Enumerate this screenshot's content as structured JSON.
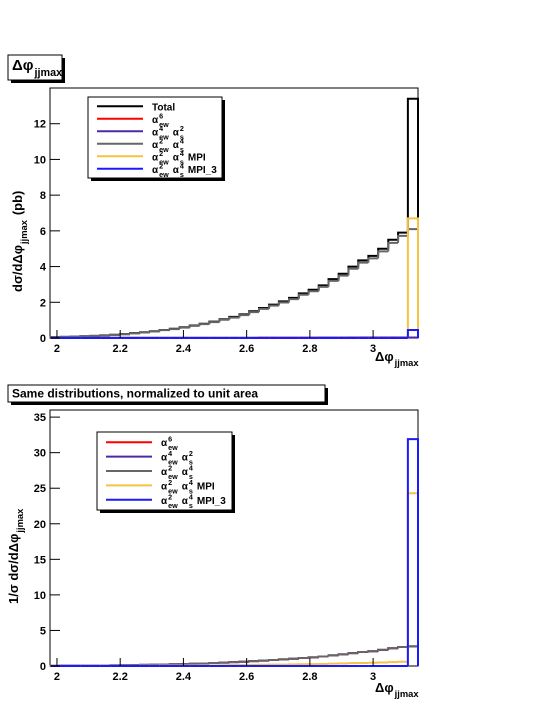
{
  "chart_data": [
    {
      "type": "histogram",
      "title": [
        {
          "text": "Δφ",
          "sub": "jjmax"
        }
      ],
      "ylabel": [
        {
          "text": "dσ/dΔφ",
          "sub": "jjmax"
        },
        {
          "text": "(pb)"
        }
      ],
      "xlabel": [
        {
          "text": "Δφ",
          "sub": "jjmax"
        }
      ],
      "bins": [
        1.98,
        2.011,
        2.043,
        2.074,
        2.106,
        2.137,
        2.168,
        2.2,
        2.231,
        2.263,
        2.294,
        2.325,
        2.357,
        2.388,
        2.42,
        2.451,
        2.482,
        2.514,
        2.545,
        2.577,
        2.608,
        2.639,
        2.671,
        2.702,
        2.734,
        2.765,
        2.796,
        2.828,
        2.859,
        2.891,
        2.922,
        2.953,
        2.985,
        3.016,
        3.048,
        3.079,
        3.11,
        3.142
      ],
      "xlim": [
        1.978,
        3.142
      ],
      "xticks": [
        2,
        2.2,
        2.4,
        2.6,
        2.8,
        3
      ],
      "ylim": [
        0,
        14
      ],
      "yticks": [
        0,
        2,
        4,
        6,
        8,
        10,
        12
      ],
      "series": [
        {
          "name": [
            {
              "text": "Total"
            }
          ],
          "color": "#000000",
          "values": [
            0.05,
            0.06,
            0.08,
            0.1,
            0.12,
            0.15,
            0.18,
            0.22,
            0.27,
            0.32,
            0.38,
            0.45,
            0.52,
            0.6,
            0.7,
            0.8,
            0.92,
            1.05,
            1.18,
            1.32,
            1.5,
            1.68,
            1.87,
            2.05,
            2.25,
            2.5,
            2.7,
            2.95,
            3.3,
            3.6,
            4.0,
            4.35,
            4.6,
            5.0,
            5.5,
            5.9,
            13.4
          ]
        },
        {
          "name": [
            {
              "text": "α",
              "sub": "ew",
              "sup": "6"
            }
          ],
          "color": "#ff0000",
          "values": [
            0.01,
            0.01,
            0.01,
            0.01,
            0.01,
            0.01,
            0.01,
            0.01,
            0.01,
            0.01,
            0.01,
            0.01,
            0.01,
            0.01,
            0.01,
            0.01,
            0.01,
            0.01,
            0.01,
            0.01,
            0.01,
            0.02,
            0.02,
            0.02,
            0.02,
            0.02,
            0.02,
            0.02,
            0.02,
            0.02,
            0.03,
            0.03,
            0.03,
            0.03,
            0.03,
            0.03,
            0.03
          ]
        },
        {
          "name": [
            {
              "text": "α",
              "sub": "ew",
              "sup": "4"
            },
            {
              "text": "α",
              "sub": "s",
              "sup": "2"
            }
          ],
          "color": "#4b2aa8",
          "values": [
            0.01,
            0.01,
            0.01,
            0.01,
            0.01,
            0.01,
            0.01,
            0.01,
            0.01,
            0.01,
            0.01,
            0.01,
            0.01,
            0.01,
            0.01,
            0.01,
            0.01,
            0.01,
            0.01,
            0.01,
            0.01,
            0.01,
            0.01,
            0.01,
            0.01,
            0.01,
            0.01,
            0.02,
            0.02,
            0.02,
            0.02,
            0.02,
            0.02,
            0.02,
            0.02,
            0.02,
            0.02
          ]
        },
        {
          "name": [
            {
              "text": "α",
              "sub": "ew",
              "sup": "2"
            },
            {
              "text": "α",
              "sub": "s",
              "sup": "4"
            }
          ],
          "color": "#666666",
          "values": [
            0.05,
            0.06,
            0.08,
            0.1,
            0.12,
            0.15,
            0.17,
            0.21,
            0.26,
            0.31,
            0.37,
            0.44,
            0.5,
            0.58,
            0.68,
            0.78,
            0.89,
            1.02,
            1.14,
            1.28,
            1.45,
            1.63,
            1.81,
            1.99,
            2.18,
            2.42,
            2.62,
            2.86,
            3.2,
            3.49,
            3.88,
            4.22,
            4.46,
            4.85,
            5.33,
            5.72,
            6.1
          ]
        },
        {
          "name": [
            {
              "text": "α",
              "sub": "ew",
              "sup": "2"
            },
            {
              "text": "α",
              "sub": "s",
              "sup": "4"
            },
            {
              "text": "MPI"
            }
          ],
          "color": "#f5c242",
          "values": [
            0,
            0,
            0,
            0,
            0,
            0,
            0,
            0,
            0,
            0,
            0,
            0,
            0,
            0,
            0,
            0,
            0,
            0,
            0,
            0,
            0,
            0,
            0,
            0,
            0,
            0,
            0,
            0,
            0,
            0,
            0,
            0,
            0,
            0,
            0,
            0,
            6.7
          ]
        },
        {
          "name": [
            {
              "text": "α",
              "sub": "ew",
              "sup": "2"
            },
            {
              "text": "α",
              "sub": "s",
              "sup": "4"
            },
            {
              "text": "MPI_3"
            }
          ],
          "color": "#1a1aff",
          "values": [
            0,
            0,
            0,
            0,
            0,
            0,
            0,
            0,
            0,
            0,
            0,
            0,
            0,
            0,
            0,
            0,
            0,
            0,
            0,
            0,
            0,
            0,
            0,
            0,
            0,
            0,
            0,
            0,
            0,
            0,
            0,
            0,
            0,
            0,
            0,
            0,
            0.45
          ]
        }
      ]
    },
    {
      "type": "histogram",
      "title": [
        {
          "text": "Same distributions, normalized to unit area"
        }
      ],
      "ylabel": [
        {
          "text": "1/σ dσ/dΔφ",
          "sub": "jjmax"
        }
      ],
      "xlabel": [
        {
          "text": "Δφ",
          "sub": "jjmax"
        }
      ],
      "bins": [
        1.98,
        2.011,
        2.043,
        2.074,
        2.106,
        2.137,
        2.168,
        2.2,
        2.231,
        2.263,
        2.294,
        2.325,
        2.357,
        2.388,
        2.42,
        2.451,
        2.482,
        2.514,
        2.545,
        2.577,
        2.608,
        2.639,
        2.671,
        2.702,
        2.734,
        2.765,
        2.796,
        2.828,
        2.859,
        2.891,
        2.922,
        2.953,
        2.985,
        3.016,
        3.048,
        3.079,
        3.11,
        3.142
      ],
      "xlim": [
        1.978,
        3.142
      ],
      "xticks": [
        2,
        2.2,
        2.4,
        2.6,
        2.8,
        3
      ],
      "ylim": [
        0,
        36
      ],
      "yticks": [
        0,
        5,
        10,
        15,
        20,
        25,
        30,
        35
      ],
      "series": [
        {
          "name": [
            {
              "text": "α",
              "sub": "ew",
              "sup": "6"
            }
          ],
          "color": "#ff0000",
          "values": [
            0.02,
            0.03,
            0.04,
            0.05,
            0.06,
            0.07,
            0.08,
            0.1,
            0.12,
            0.15,
            0.17,
            0.2,
            0.24,
            0.27,
            0.32,
            0.36,
            0.42,
            0.48,
            0.54,
            0.6,
            0.68,
            0.76,
            0.85,
            0.93,
            1.02,
            1.13,
            1.22,
            1.34,
            1.5,
            1.63,
            1.81,
            1.97,
            2.08,
            2.26,
            2.49,
            2.67,
            2.76
          ]
        },
        {
          "name": [
            {
              "text": "α",
              "sub": "ew",
              "sup": "4"
            },
            {
              "text": "α",
              "sub": "s",
              "sup": "2"
            }
          ],
          "color": "#4b2aa8",
          "values": [
            0.02,
            0.03,
            0.04,
            0.05,
            0.06,
            0.07,
            0.08,
            0.1,
            0.12,
            0.15,
            0.17,
            0.2,
            0.24,
            0.27,
            0.32,
            0.36,
            0.42,
            0.48,
            0.54,
            0.6,
            0.68,
            0.76,
            0.85,
            0.93,
            1.02,
            1.13,
            1.22,
            1.34,
            1.5,
            1.63,
            1.81,
            1.97,
            2.08,
            2.26,
            2.49,
            2.67,
            2.76
          ]
        },
        {
          "name": [
            {
              "text": "α",
              "sub": "ew",
              "sup": "2"
            },
            {
              "text": "α",
              "sub": "s",
              "sup": "4"
            }
          ],
          "color": "#666666",
          "values": [
            0.02,
            0.03,
            0.04,
            0.05,
            0.06,
            0.07,
            0.08,
            0.1,
            0.12,
            0.15,
            0.17,
            0.2,
            0.24,
            0.27,
            0.32,
            0.36,
            0.42,
            0.48,
            0.54,
            0.6,
            0.68,
            0.76,
            0.85,
            0.93,
            1.02,
            1.13,
            1.22,
            1.34,
            1.5,
            1.63,
            1.81,
            1.97,
            2.08,
            2.26,
            2.49,
            2.67,
            2.76
          ]
        },
        {
          "name": [
            {
              "text": "α",
              "sub": "ew",
              "sup": "2"
            },
            {
              "text": "α",
              "sub": "s",
              "sup": "4"
            },
            {
              "text": "MPI"
            }
          ],
          "color": "#f5c242",
          "values": [
            0.004,
            0.006,
            0.008,
            0.01,
            0.012,
            0.015,
            0.018,
            0.022,
            0.026,
            0.033,
            0.037,
            0.044,
            0.053,
            0.06,
            0.07,
            0.08,
            0.09,
            0.1,
            0.12,
            0.13,
            0.15,
            0.17,
            0.19,
            0.2,
            0.22,
            0.25,
            0.27,
            0.29,
            0.33,
            0.36,
            0.4,
            0.43,
            0.46,
            0.5,
            0.55,
            0.59,
            24.3
          ]
        },
        {
          "name": [
            {
              "text": "α",
              "sub": "ew",
              "sup": "2"
            },
            {
              "text": "α",
              "sub": "s",
              "sup": "4"
            },
            {
              "text": "MPI_3"
            }
          ],
          "color": "#1a1aff",
          "values": [
            0,
            0,
            0,
            0,
            0,
            0,
            0,
            0,
            0,
            0,
            0,
            0,
            0,
            0,
            0,
            0,
            0,
            0,
            0,
            0,
            0,
            0,
            0,
            0,
            0,
            0,
            0,
            0,
            0,
            0,
            0,
            0,
            0,
            0,
            0,
            0,
            31.9
          ]
        }
      ]
    }
  ]
}
